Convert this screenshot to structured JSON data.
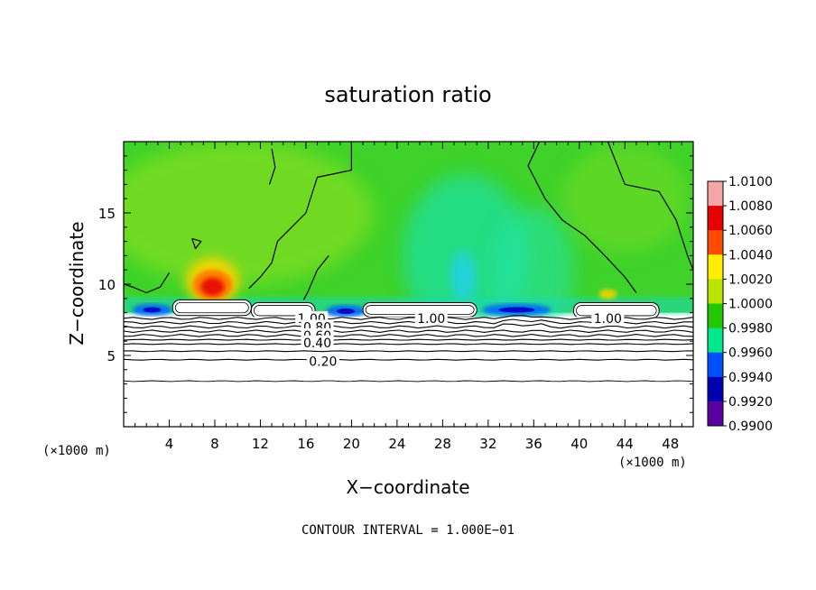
{
  "chart_data": {
    "type": "heatmap",
    "title": "saturation ratio",
    "xlabel": "X−coordinate",
    "ylabel": "Z−coordinate",
    "x_unit_left": "(×1000 m)",
    "x_unit_right": "(×1000 m)",
    "footer": "CONTOUR INTERVAL = 1.000E−01",
    "xlim": [
      0,
      50
    ],
    "ylim": [
      0,
      20
    ],
    "x_ticks": [
      4,
      8,
      12,
      16,
      20,
      24,
      28,
      32,
      36,
      40,
      44,
      48
    ],
    "y_ticks": [
      5,
      10,
      15
    ],
    "colorbar": {
      "labels": [
        "1.0100",
        "1.0080",
        "1.0060",
        "1.0040",
        "1.0020",
        "1.0000",
        "0.9980",
        "0.9960",
        "0.9940",
        "0.9920",
        "0.9900"
      ],
      "colors": [
        "#f4a6a6",
        "#e60000",
        "#ff4a00",
        "#ff9900",
        "#ffee00",
        "#b8e600",
        "#22c800",
        "#00e88c",
        "#00b4ff",
        "#0050ff",
        "#0000b0",
        "#5a00a0"
      ]
    },
    "contour_labels": [
      {
        "text": "1.00",
        "x": 16.5,
        "y": 7.6
      },
      {
        "text": "0.80",
        "x": 17.0,
        "y": 7.0
      },
      {
        "text": "0.60",
        "x": 17.0,
        "y": 6.4
      },
      {
        "text": "0.40",
        "x": 17.0,
        "y": 5.9
      },
      {
        "text": "0.20",
        "x": 17.5,
        "y": 4.6
      },
      {
        "text": "1.00",
        "x": 27.0,
        "y": 7.6
      },
      {
        "text": "1.00",
        "x": 42.5,
        "y": 7.6
      }
    ],
    "contour_lines_z": [
      7.6,
      7.3,
      7.0,
      6.7,
      6.4,
      6.1,
      5.8,
      5.3,
      4.7,
      3.2
    ],
    "cloud_bands": [
      {
        "x0": 4.3,
        "x1": 11.2,
        "z0": 7.8,
        "z1": 8.9
      },
      {
        "x0": 11.2,
        "x1": 16.8,
        "z0": 7.6,
        "z1": 8.7
      },
      {
        "x0": 21.0,
        "x1": 31.0,
        "z0": 7.7,
        "z1": 8.7
      },
      {
        "x0": 39.5,
        "x1": 47.0,
        "z0": 7.6,
        "z1": 8.7
      }
    ],
    "hotspot": {
      "x": 7.8,
      "z": 10.2,
      "value": 1.007
    },
    "cold_spots": [
      {
        "x": 2.5,
        "z": 8.2
      },
      {
        "x": 34.5,
        "z": 8.2
      },
      {
        "x": 19.5,
        "z": 8.1
      }
    ]
  }
}
